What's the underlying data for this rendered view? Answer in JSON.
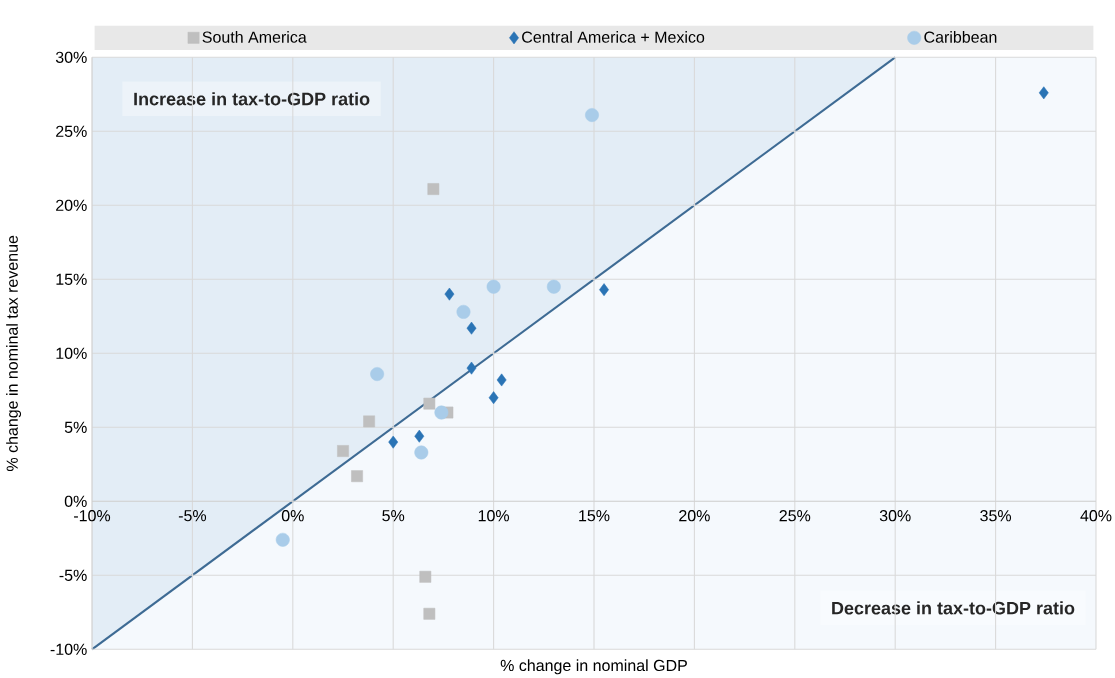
{
  "chart_data": {
    "type": "scatter",
    "xlabel": "% change in nominal GDP",
    "ylabel": "% change in nominal tax revenue",
    "annotations": [
      "Increase in tax-to-GDP ratio",
      "Decrease in tax-to-GDP ratio"
    ],
    "series": [
      {
        "name": "South America",
        "color": "#bfbfbf",
        "marker": "square",
        "x": [
          7.0,
          6.8,
          7.7,
          3.8,
          2.5,
          3.2,
          6.6,
          6.8
        ],
        "values": [
          21.1,
          6.6,
          6.0,
          5.4,
          3.4,
          1.7,
          -5.1,
          -7.6
        ]
      },
      {
        "name": "Central America + Mexico",
        "color": "#2a74b5",
        "marker": "diamond",
        "x": [
          37.4,
          15.5,
          7.8,
          8.9,
          8.9,
          10.4,
          10.0,
          6.3,
          5.0
        ],
        "values": [
          27.6,
          14.3,
          14.0,
          11.7,
          9.0,
          8.2,
          7.0,
          4.4,
          4.0
        ]
      },
      {
        "name": "Caribbean",
        "color": "#a9cce9",
        "marker": "circle",
        "x": [
          14.9,
          10.0,
          13.0,
          8.5,
          4.2,
          7.4,
          6.4,
          -0.5
        ],
        "values": [
          26.1,
          14.5,
          14.5,
          12.8,
          8.6,
          6.0,
          3.3,
          -2.6
        ]
      },
      {
        "type": "line",
        "color": "#3e6b94",
        "x": [
          -10,
          30
        ],
        "values": [
          -10,
          30
        ],
        "lower": [
          -10,
          30
        ],
        "upper": [
          30,
          30
        ]
      }
    ],
    "xlim": [
      -10,
      40
    ],
    "ylim": [
      -10,
      30
    ],
    "xticks": [
      {
        "value": -10,
        "label": "-10%"
      },
      {
        "value": -5,
        "label": "-5%"
      },
      {
        "value": 0,
        "label": "0%"
      },
      {
        "value": 5,
        "label": "5%"
      },
      {
        "value": 10,
        "label": "10%"
      },
      {
        "value": 15,
        "label": "15%"
      },
      {
        "value": 20,
        "label": "20%"
      },
      {
        "value": 25,
        "label": "25%"
      },
      {
        "value": 30,
        "label": "30%"
      },
      {
        "value": 35,
        "label": "35%"
      },
      {
        "value": 40,
        "label": "40%"
      }
    ],
    "yticks": [
      {
        "value": -10,
        "label": "-10%"
      },
      {
        "value": -5,
        "label": "-5%"
      },
      {
        "value": 0,
        "label": "0%"
      },
      {
        "value": 5,
        "label": "5%"
      },
      {
        "value": 10,
        "label": "10%"
      },
      {
        "value": 15,
        "label": "15%"
      },
      {
        "value": 20,
        "label": "20%"
      },
      {
        "value": 25,
        "label": "25%"
      },
      {
        "value": 30,
        "label": "30%"
      }
    ],
    "grid": true,
    "legend": "top"
  }
}
